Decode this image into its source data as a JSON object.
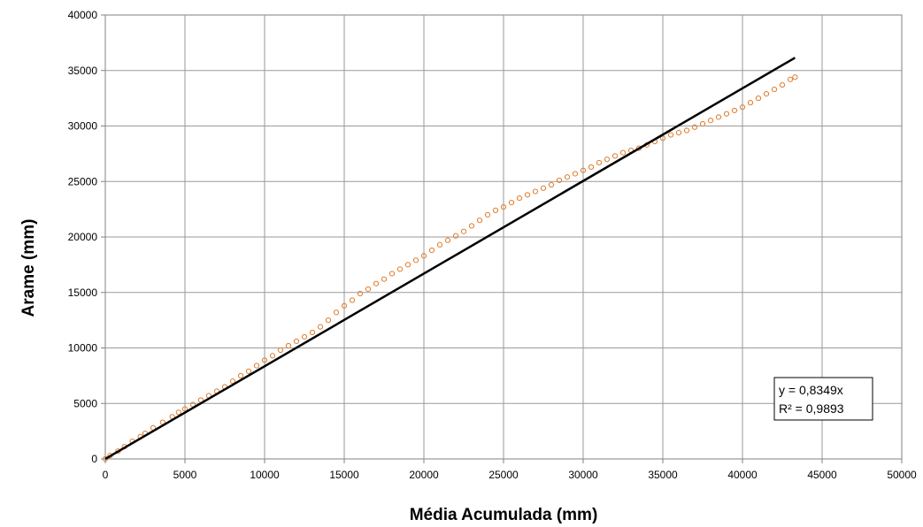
{
  "chart_data": {
    "type": "scatter",
    "title": "",
    "xlabel": "Média Acumulada (mm)",
    "ylabel": "Arame (mm)",
    "xlim": [
      0,
      50000
    ],
    "ylim": [
      0,
      40000
    ],
    "x_ticks": [
      "0",
      "5000",
      "10000",
      "15000",
      "20000",
      "25000",
      "30000",
      "35000",
      "40000",
      "45000",
      "50000"
    ],
    "y_ticks": [
      "0",
      "5000",
      "10000",
      "15000",
      "20000",
      "25000",
      "30000",
      "35000",
      "40000"
    ],
    "grid": true,
    "marker_color": "#E07B2A",
    "trendline_color": "#000000",
    "series": [
      {
        "marker": "open-circle",
        "x": [
          0,
          300,
          800,
          1200,
          1700,
          2200,
          2500,
          3000,
          3600,
          4200,
          4600,
          5000,
          5500,
          6000,
          6500,
          7000,
          7500,
          8000,
          8500,
          9000,
          9500,
          10000,
          10500,
          11000,
          11500,
          12000,
          12500,
          13000,
          13500,
          14000,
          14500,
          15000,
          15500,
          16000,
          16500,
          17000,
          17500,
          18000,
          18500,
          19000,
          19500,
          20000,
          20500,
          21000,
          21500,
          22000,
          22500,
          23000,
          23500,
          24000,
          24500,
          25000,
          25500,
          26000,
          26500,
          27000,
          27500,
          28000,
          28500,
          29000,
          29500,
          30000,
          30500,
          31000,
          31500,
          32000,
          32500,
          33000,
          33500,
          34000,
          34500,
          35000,
          35500,
          36000,
          36500,
          37000,
          37500,
          38000,
          38500,
          39000,
          39500,
          40000,
          40500,
          41000,
          41500,
          42000,
          42500,
          43000,
          43300
        ],
        "y": [
          0,
          300,
          700,
          1100,
          1600,
          2000,
          2300,
          2800,
          3300,
          3800,
          4200,
          4500,
          4900,
          5300,
          5700,
          6100,
          6500,
          7000,
          7500,
          7900,
          8400,
          8900,
          9300,
          9800,
          10200,
          10600,
          11000,
          11400,
          11900,
          12500,
          13200,
          13800,
          14300,
          14900,
          15300,
          15800,
          16200,
          16700,
          17100,
          17500,
          17900,
          18300,
          18800,
          19300,
          19700,
          20100,
          20500,
          21000,
          21500,
          22000,
          22400,
          22700,
          23100,
          23500,
          23800,
          24100,
          24400,
          24700,
          25100,
          25400,
          25700,
          26000,
          26300,
          26700,
          27000,
          27300,
          27600,
          27800,
          28000,
          28300,
          28600,
          28900,
          29200,
          29400,
          29600,
          29900,
          30200,
          30500,
          30800,
          31100,
          31400,
          31700,
          32100,
          32500,
          32900,
          33300,
          33700,
          34200,
          34400
        ]
      }
    ],
    "trendline": {
      "slope": 0.8349,
      "x_range": [
        0,
        43300
      ],
      "equation": "y = 0,8349x",
      "r2": "R² = 0,9893"
    }
  }
}
